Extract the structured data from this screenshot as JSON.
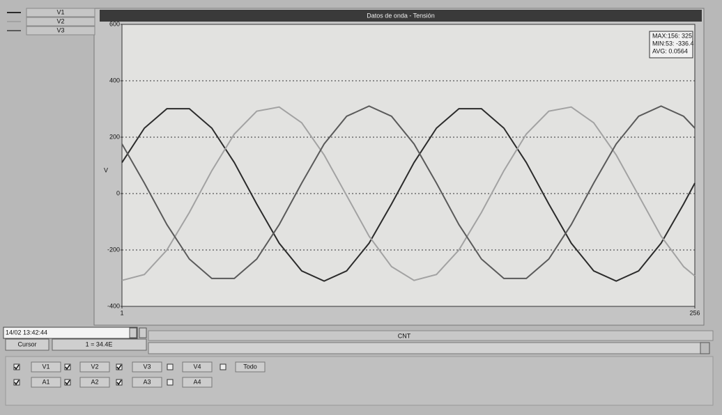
{
  "window_title": "Datos de onda - Tensión",
  "chart_data": {
    "type": "line",
    "y_label": "V",
    "x_label": "CNT",
    "x": [
      1,
      11,
      21,
      31,
      41,
      51,
      61,
      71,
      81,
      91,
      101,
      111,
      121,
      131,
      141,
      151,
      161,
      171,
      181,
      191,
      201,
      211,
      221,
      231,
      241,
      251,
      256
    ],
    "xlim": [
      1,
      256
    ],
    "xticks": [
      1,
      256
    ],
    "ylim": [
      -400,
      600
    ],
    "yticks": [
      -400,
      -200,
      0,
      200,
      400,
      600
    ],
    "grid": true,
    "series": [
      {
        "name": "V1",
        "color": "#2b2b2b",
        "values": [
          110,
          232,
          301,
          301,
          232,
          110,
          -37,
          -176,
          -274,
          -310,
          -274,
          -176,
          -37,
          110,
          232,
          301,
          301,
          232,
          110,
          -37,
          -176,
          -274,
          -310,
          -274,
          -176,
          -37,
          37
        ]
      },
      {
        "name": "V2",
        "color": "#a2a2a2",
        "values": [
          -308,
          -287,
          -200,
          -67,
          81,
          211,
          292,
          307,
          251,
          137,
          -7,
          -151,
          -259,
          -308,
          -287,
          -200,
          -67,
          81,
          211,
          292,
          307,
          251,
          137,
          -7,
          -151,
          -259,
          -292
        ]
      },
      {
        "name": "V3",
        "color": "#5a5a5a",
        "values": [
          176,
          37,
          -110,
          -232,
          -301,
          -301,
          -232,
          -110,
          37,
          176,
          274,
          310,
          274,
          176,
          37,
          -110,
          -232,
          -301,
          -301,
          -232,
          -110,
          37,
          176,
          274,
          310,
          274,
          232
        ]
      }
    ],
    "stats": [
      "MAX:156: 325",
      "MIN:53: -336.4",
      "AVG: 0.0564"
    ]
  },
  "controls": {
    "timestamp": "14/02 13:42:44",
    "cursor_button": "Cursor",
    "cursor_value": "1 = 34.4E",
    "channels": [
      [
        {
          "label": "V1",
          "checked": true
        },
        {
          "label": "V2",
          "checked": true
        },
        {
          "label": "V3",
          "checked": true
        },
        {
          "label": "V4",
          "checked": false
        },
        {
          "label": "Todo",
          "checked": false
        }
      ],
      [
        {
          "label": "A1",
          "checked": true
        },
        {
          "label": "A2",
          "checked": true
        },
        {
          "label": "A3",
          "checked": true
        },
        {
          "label": "A4",
          "checked": false
        }
      ]
    ]
  }
}
